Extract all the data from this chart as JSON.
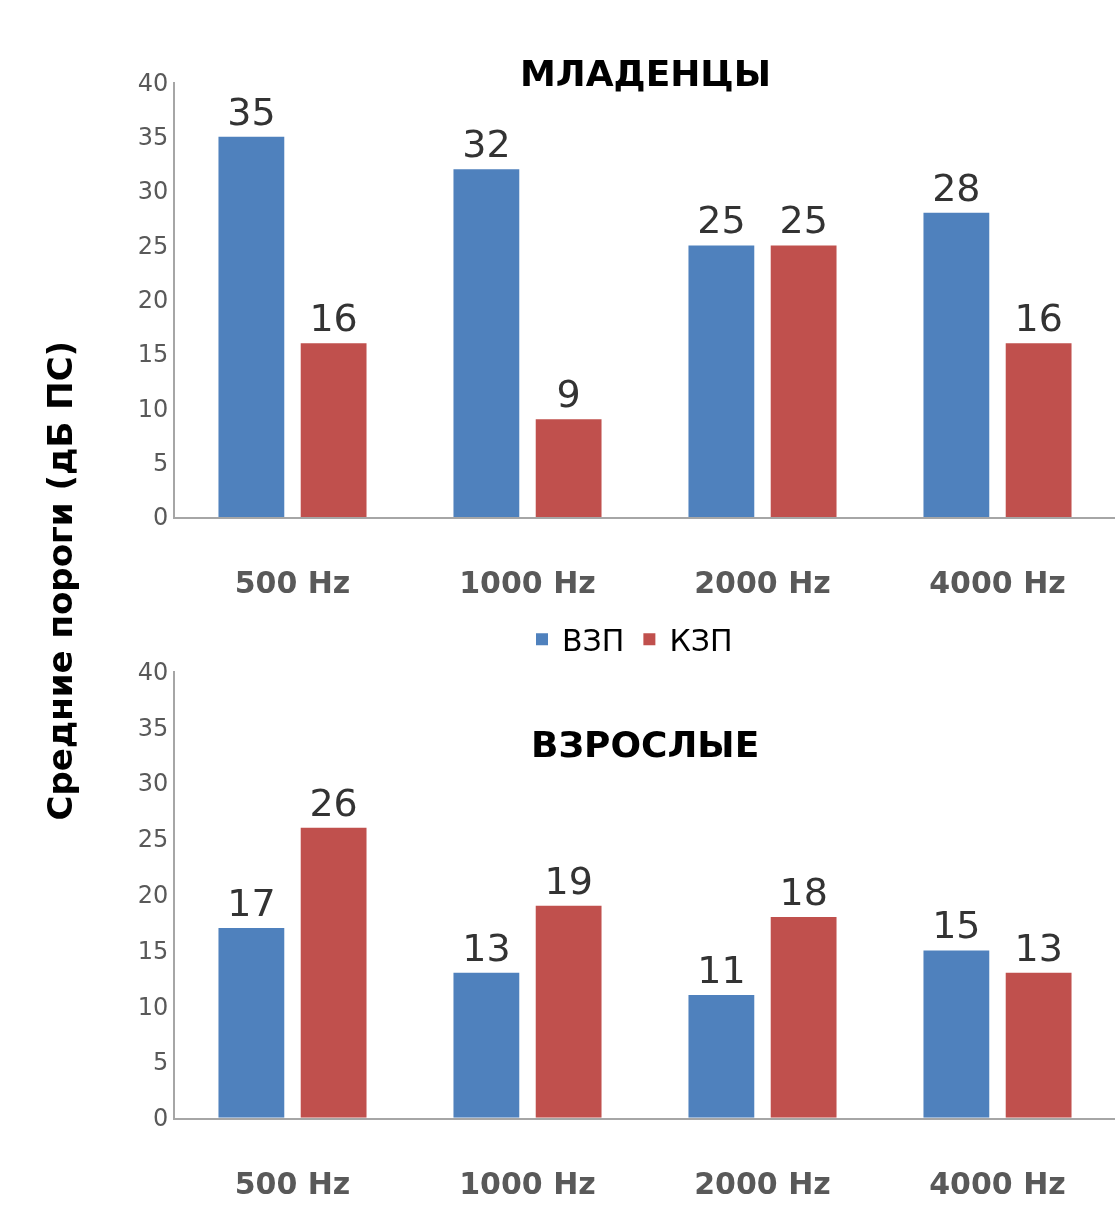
{
  "chart_data": [
    {
      "type": "bar",
      "title": "МЛАДЕНЦЫ",
      "ylabel": "Средние пороги (дБ ПС)",
      "categories": [
        "500 Hz",
        "1000 Hz",
        "2000 Hz",
        "4000 Hz"
      ],
      "series": [
        {
          "name": "ВЗП",
          "color": "#4f81bd",
          "values": [
            35,
            32,
            25,
            28
          ]
        },
        {
          "name": "КЗП",
          "color": "#c0504d",
          "values": [
            16,
            9,
            25,
            16
          ]
        }
      ],
      "ylim": [
        0,
        40
      ],
      "yticks": [
        0,
        5,
        10,
        15,
        20,
        25,
        30,
        35,
        40
      ],
      "data_labels": true,
      "legend": "bottom"
    },
    {
      "type": "bar",
      "title": "ВЗРОСЛЫЕ",
      "categories": [
        "500 Hz",
        "1000 Hz",
        "2000 Hz",
        "4000 Hz"
      ],
      "series": [
        {
          "name": "ВЗП",
          "color": "#4f81bd",
          "values": [
            17,
            13,
            11,
            15
          ]
        },
        {
          "name": "КЗП",
          "color": "#c0504d",
          "values": [
            26,
            19,
            18,
            13
          ]
        }
      ],
      "ylim": [
        0,
        40
      ],
      "yticks": [
        0,
        5,
        10,
        15,
        20,
        25,
        30,
        35,
        40
      ],
      "data_labels": true,
      "legend": "top"
    }
  ]
}
